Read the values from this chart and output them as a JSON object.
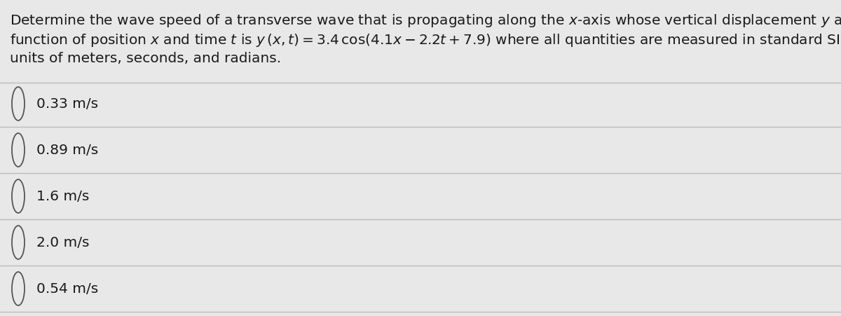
{
  "background_color": "#e8e8e8",
  "question_text_parts": [
    {
      "text": "Determine the wave speed of a transverse wave that is propagating along the ",
      "style": "normal"
    },
    {
      "text": "x",
      "style": "italic"
    },
    {
      "text": "-axis whose vertical displacement ",
      "style": "normal"
    },
    {
      "text": "y",
      "style": "italic"
    },
    {
      "text": " as a",
      "style": "normal"
    }
  ],
  "line1": "Determine the wave speed of a transverse wave that is propagating along the $x$-axis whose vertical displacement $y$ as a",
  "line2": "function of position $x$ and time $t$ is $y\\,(x,t) = 3.4\\,\\mathrm{cos}(4.1x - 2.2t + 7.9)$ where all quantities are measured in standard SI",
  "line3": "units of meters, seconds, and radians.",
  "options": [
    "0.33 m/s",
    "0.89 m/s",
    "1.6 m/s",
    "2.0 m/s",
    "0.54 m/s"
  ],
  "font_size_question": 14.5,
  "font_size_options": 14.5,
  "text_color": "#1a1a1a",
  "circle_color": "#555555",
  "line_color": "#bbbbbb",
  "line_width": 1.0
}
